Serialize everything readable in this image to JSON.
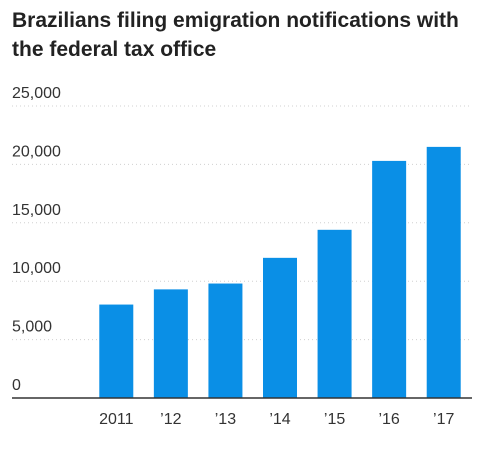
{
  "chart_data": {
    "type": "bar",
    "title": "Brazilians filing emigration notifications with the federal tax office",
    "categories": [
      "2011",
      "’12",
      "’13",
      "’14",
      "’15",
      "’16",
      "’17"
    ],
    "values": [
      8000,
      9300,
      9800,
      12000,
      14400,
      20300,
      21500
    ],
    "ylim": [
      0,
      25000
    ],
    "yticks": [
      0,
      5000,
      10000,
      15000,
      20000,
      25000
    ],
    "ytick_labels": [
      "0",
      "5,000",
      "10,000",
      "15,000",
      "20,000",
      "25,000"
    ],
    "xlabel": "",
    "ylabel": "",
    "grid": true,
    "bar_color": "#0a8fe6",
    "grid_color": "#d0d0d0",
    "axis_color": "#333333"
  }
}
